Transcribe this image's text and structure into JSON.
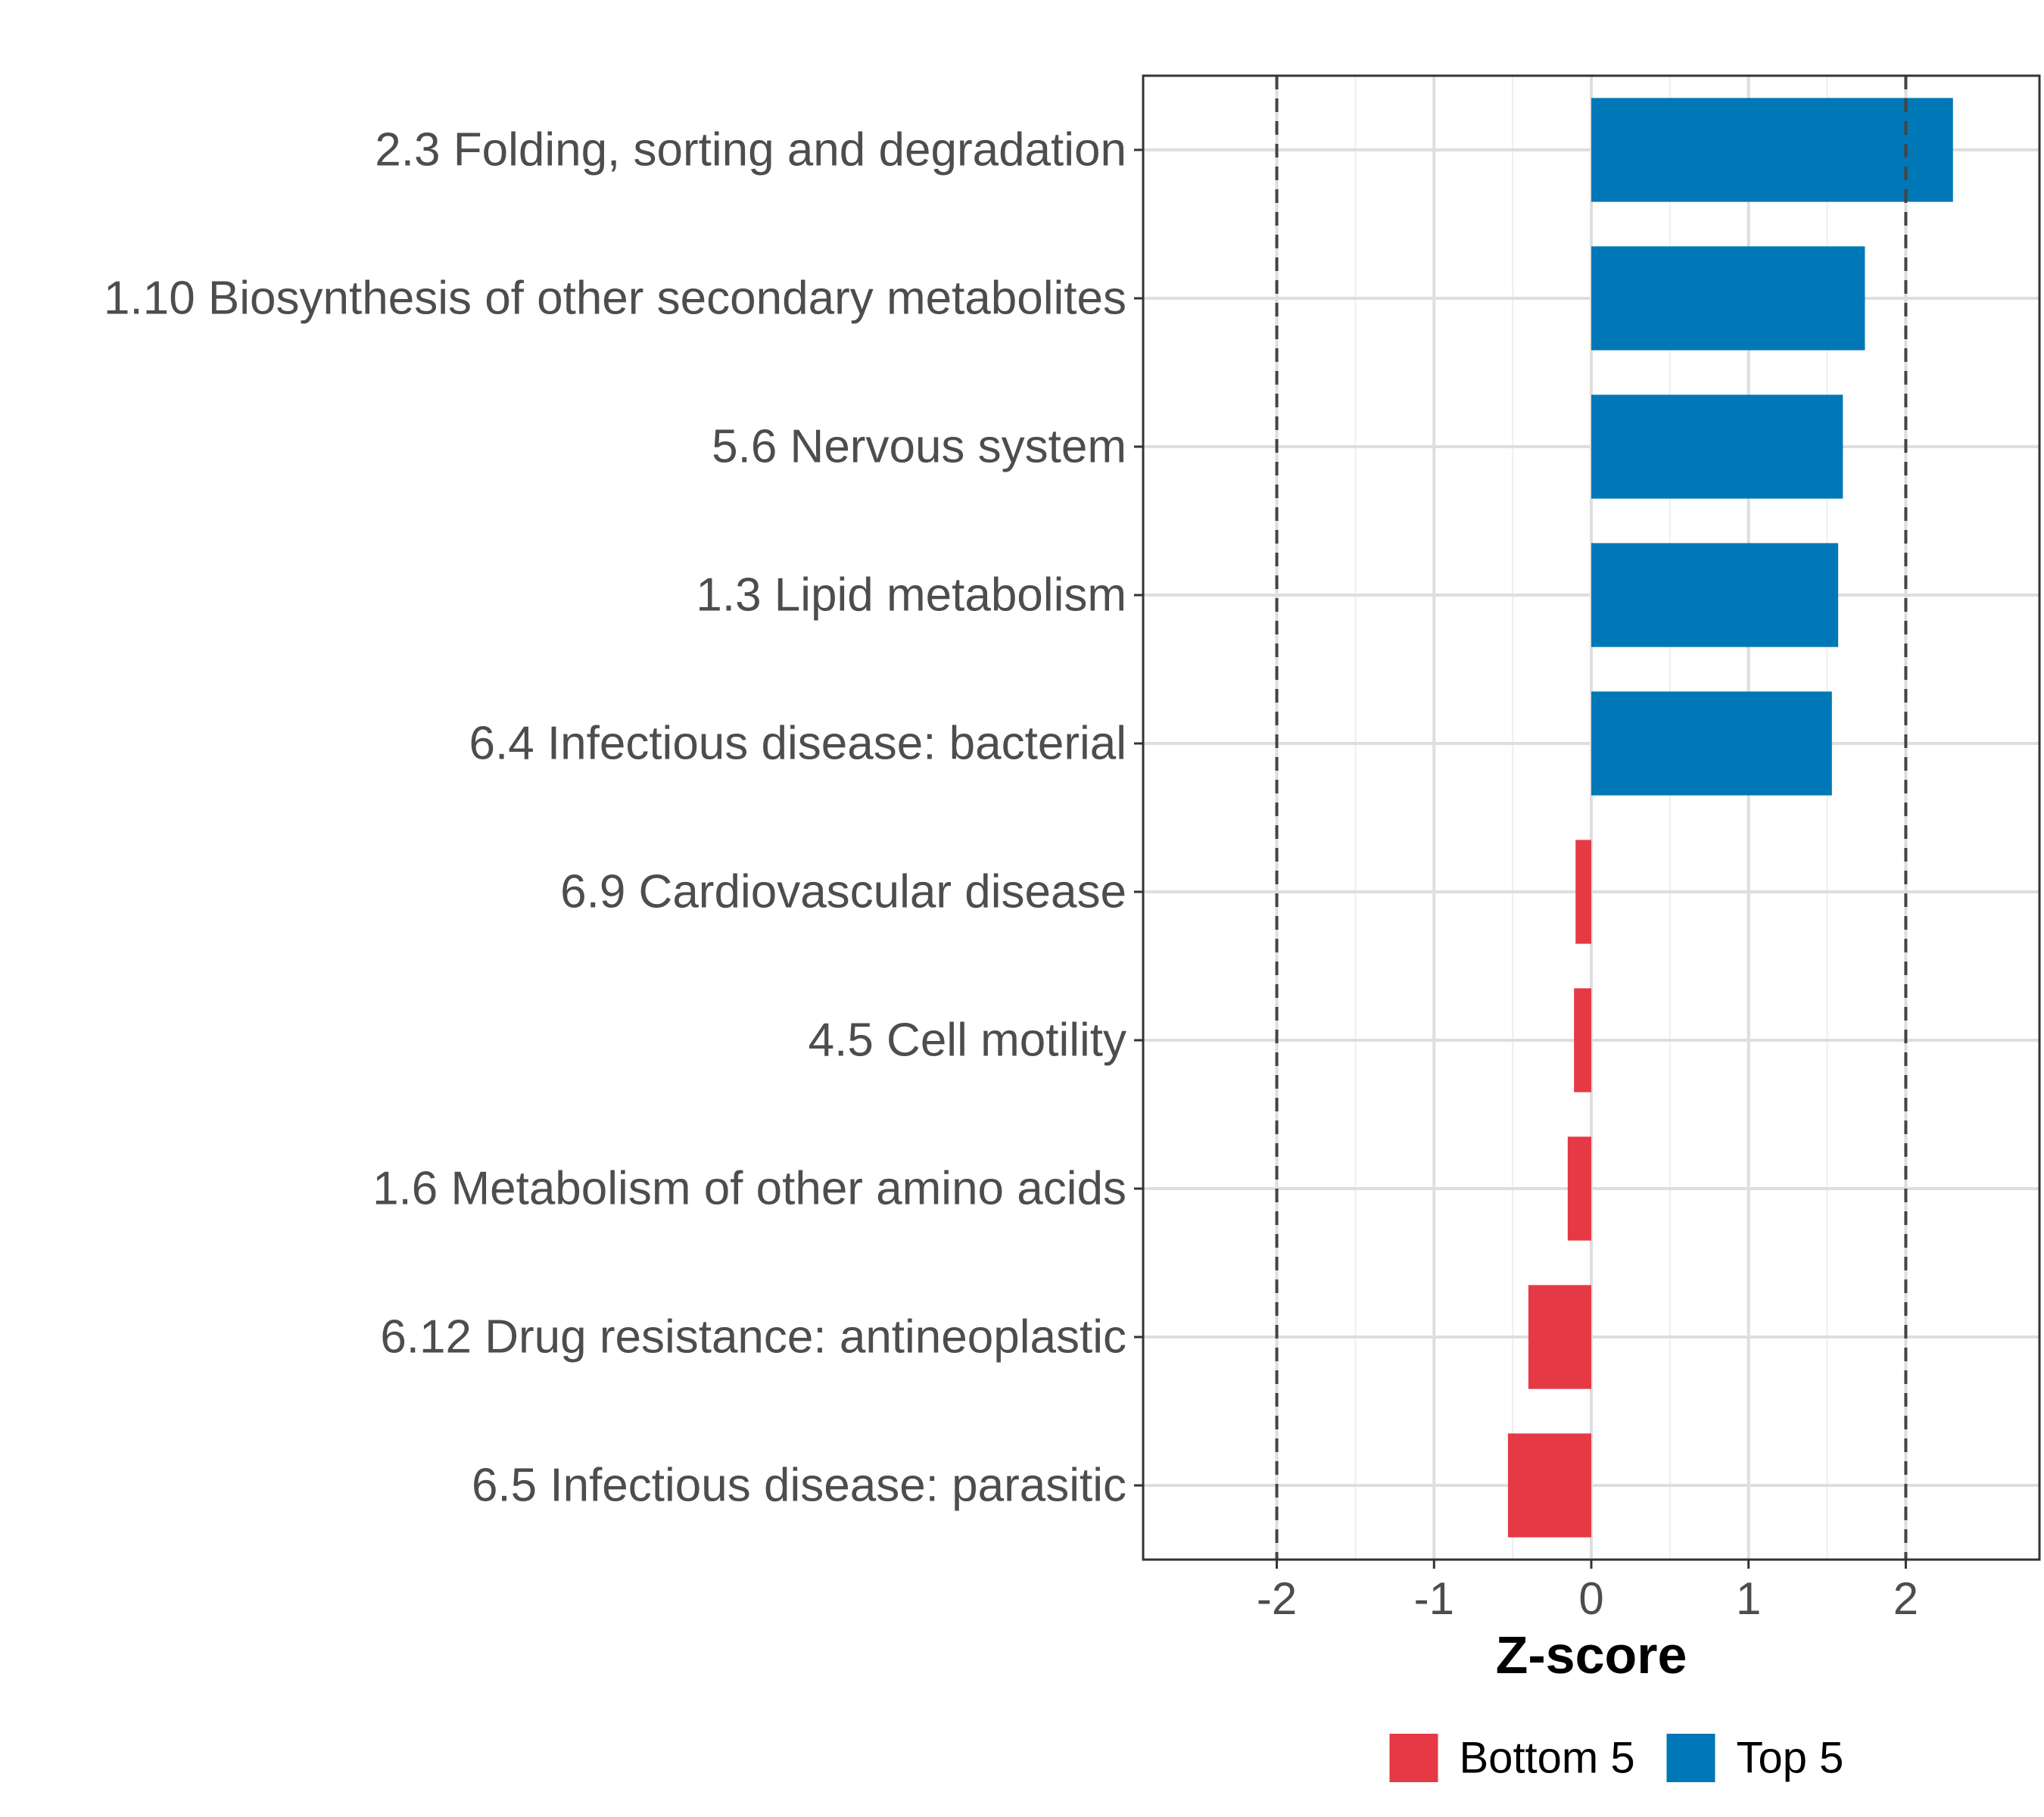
{
  "chart_data": {
    "type": "bar",
    "orientation": "horizontal",
    "title": "",
    "xlabel": "Z-score",
    "ylabel": "",
    "xlim": [
      -2.85,
      2.85
    ],
    "x_ticks": [
      -2,
      -1,
      0,
      1,
      2
    ],
    "x_tick_labels": [
      "-2",
      "-1",
      "0",
      "1",
      "2"
    ],
    "reference_lines": [
      -2,
      2
    ],
    "grid": true,
    "legend_position": "bottom",
    "categories": [
      "2.3 Folding, sorting and degradation",
      "1.10 Biosynthesis of other secondary metabolites",
      "5.6 Nervous system",
      "1.3 Lipid metabolism",
      "6.4 Infectious disease: bacterial",
      "6.9 Cardiovascular disease",
      "4.5 Cell motility",
      "1.6 Metabolism of other amino acids",
      "6.12 Drug resistance: antineoplastic",
      "6.5 Infectious disease: parasitic"
    ],
    "values": [
      2.3,
      1.74,
      1.6,
      1.57,
      1.53,
      -0.1,
      -0.11,
      -0.15,
      -0.4,
      -0.53
    ],
    "groups": [
      "Top 5",
      "Top 5",
      "Top 5",
      "Top 5",
      "Top 5",
      "Bottom 5",
      "Bottom 5",
      "Bottom 5",
      "Bottom 5",
      "Bottom 5"
    ],
    "legend": [
      {
        "name": "Bottom 5",
        "color": "#E63946"
      },
      {
        "name": "Top 5",
        "color": "#0077B6"
      }
    ]
  }
}
